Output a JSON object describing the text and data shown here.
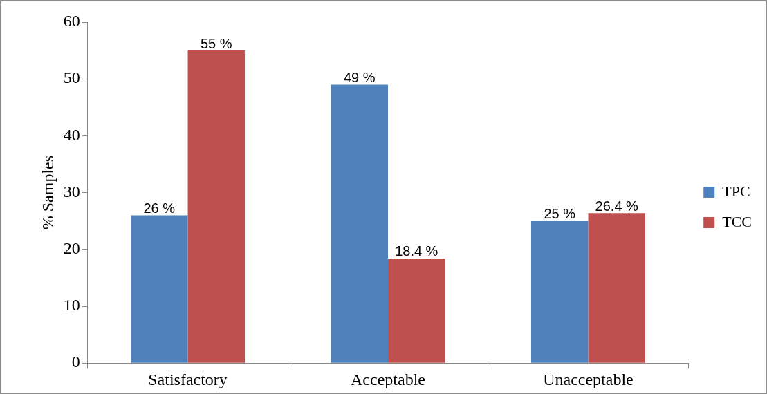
{
  "chart_data": {
    "type": "bar",
    "ylabel": "% Samples",
    "categories": [
      "Satisfactory",
      "Acceptable",
      "Unacceptable"
    ],
    "series": [
      {
        "name": "TPC",
        "color": "#4f81bd",
        "values": [
          26,
          49,
          25
        ],
        "value_labels": [
          "26 %",
          "49 %",
          "25 %"
        ]
      },
      {
        "name": "TCC",
        "color": "#c0504d",
        "values": [
          55,
          18.4,
          26.4
        ],
        "value_labels": [
          "55 %",
          "18.4 %",
          "26.4 %"
        ]
      }
    ],
    "ylim": [
      0,
      60
    ],
    "yticks": [
      0,
      10,
      20,
      30,
      40,
      50,
      60
    ],
    "grid": false,
    "legend": "right"
  }
}
